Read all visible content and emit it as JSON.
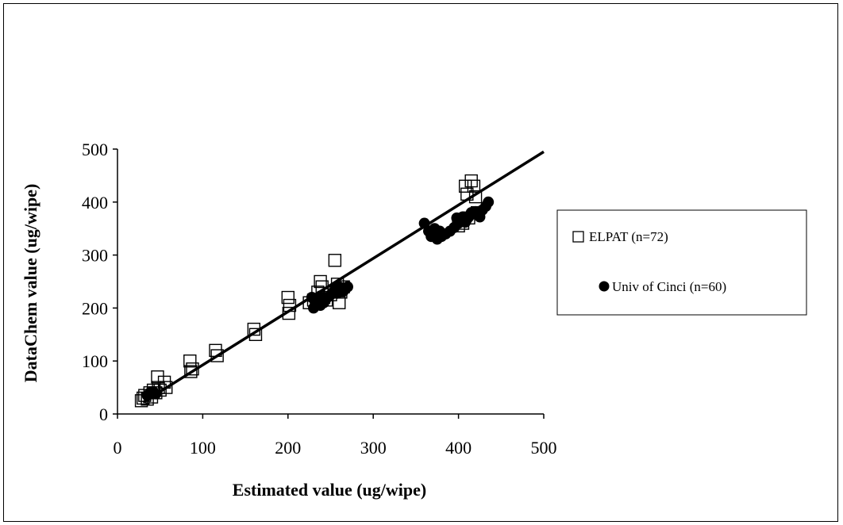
{
  "chart_data": {
    "type": "scatter",
    "title": "",
    "xlabel": "Estimated value (ug/wipe)",
    "ylabel": "DataChem value (ug/wipe)",
    "xlim": [
      0,
      500
    ],
    "ylim": [
      0,
      500
    ],
    "x_ticks": [
      "0",
      "100",
      "200",
      "300",
      "400",
      "500"
    ],
    "y_ticks": [
      "0",
      "100",
      "200",
      "300",
      "400",
      "500"
    ],
    "grid": false,
    "legend_position": "right",
    "trendline": {
      "x": [
        30,
        500
      ],
      "y": [
        22,
        495
      ]
    },
    "series": [
      {
        "name": "ELPAT (n=72)",
        "marker": "open-square",
        "color": "#000000",
        "points": [
          [
            28,
            25
          ],
          [
            30,
            30
          ],
          [
            32,
            35
          ],
          [
            35,
            28
          ],
          [
            38,
            40
          ],
          [
            40,
            32
          ],
          [
            42,
            45
          ],
          [
            45,
            40
          ],
          [
            47,
            70
          ],
          [
            48,
            50
          ],
          [
            50,
            45
          ],
          [
            55,
            60
          ],
          [
            57,
            50
          ],
          [
            85,
            100
          ],
          [
            86,
            80
          ],
          [
            88,
            85
          ],
          [
            115,
            120
          ],
          [
            117,
            110
          ],
          [
            160,
            160
          ],
          [
            162,
            150
          ],
          [
            200,
            220
          ],
          [
            201,
            190
          ],
          [
            202,
            205
          ],
          [
            225,
            210
          ],
          [
            230,
            215
          ],
          [
            235,
            230
          ],
          [
            238,
            250
          ],
          [
            240,
            240
          ],
          [
            242,
            220
          ],
          [
            245,
            215
          ],
          [
            250,
            225
          ],
          [
            255,
            290
          ],
          [
            258,
            245
          ],
          [
            260,
            210
          ],
          [
            262,
            230
          ],
          [
            265,
            240
          ],
          [
            400,
            355
          ],
          [
            405,
            360
          ],
          [
            408,
            430
          ],
          [
            410,
            415
          ],
          [
            412,
            370
          ],
          [
            415,
            440
          ],
          [
            418,
            430
          ],
          [
            420,
            410
          ],
          [
            422,
            380
          ]
        ]
      },
      {
        "name": "Univ of Cinci (n=60)",
        "marker": "filled-circle",
        "color": "#000000",
        "points": [
          [
            35,
            35
          ],
          [
            38,
            40
          ],
          [
            40,
            38
          ],
          [
            42,
            42
          ],
          [
            45,
            38
          ],
          [
            228,
            220
          ],
          [
            230,
            200
          ],
          [
            232,
            210
          ],
          [
            235,
            215
          ],
          [
            238,
            205
          ],
          [
            240,
            220
          ],
          [
            242,
            210
          ],
          [
            245,
            218
          ],
          [
            250,
            225
          ],
          [
            255,
            235
          ],
          [
            258,
            228
          ],
          [
            260,
            240
          ],
          [
            265,
            232
          ],
          [
            270,
            240
          ],
          [
            360,
            360
          ],
          [
            365,
            345
          ],
          [
            368,
            335
          ],
          [
            370,
            340
          ],
          [
            372,
            350
          ],
          [
            375,
            330
          ],
          [
            378,
            345
          ],
          [
            380,
            335
          ],
          [
            385,
            340
          ],
          [
            390,
            345
          ],
          [
            395,
            352
          ],
          [
            398,
            370
          ],
          [
            400,
            360
          ],
          [
            403,
            365
          ],
          [
            405,
            372
          ],
          [
            408,
            362
          ],
          [
            410,
            368
          ],
          [
            412,
            372
          ],
          [
            415,
            380
          ],
          [
            418,
            378
          ],
          [
            420,
            382
          ],
          [
            425,
            372
          ],
          [
            428,
            385
          ],
          [
            432,
            392
          ],
          [
            435,
            400
          ]
        ]
      }
    ]
  }
}
